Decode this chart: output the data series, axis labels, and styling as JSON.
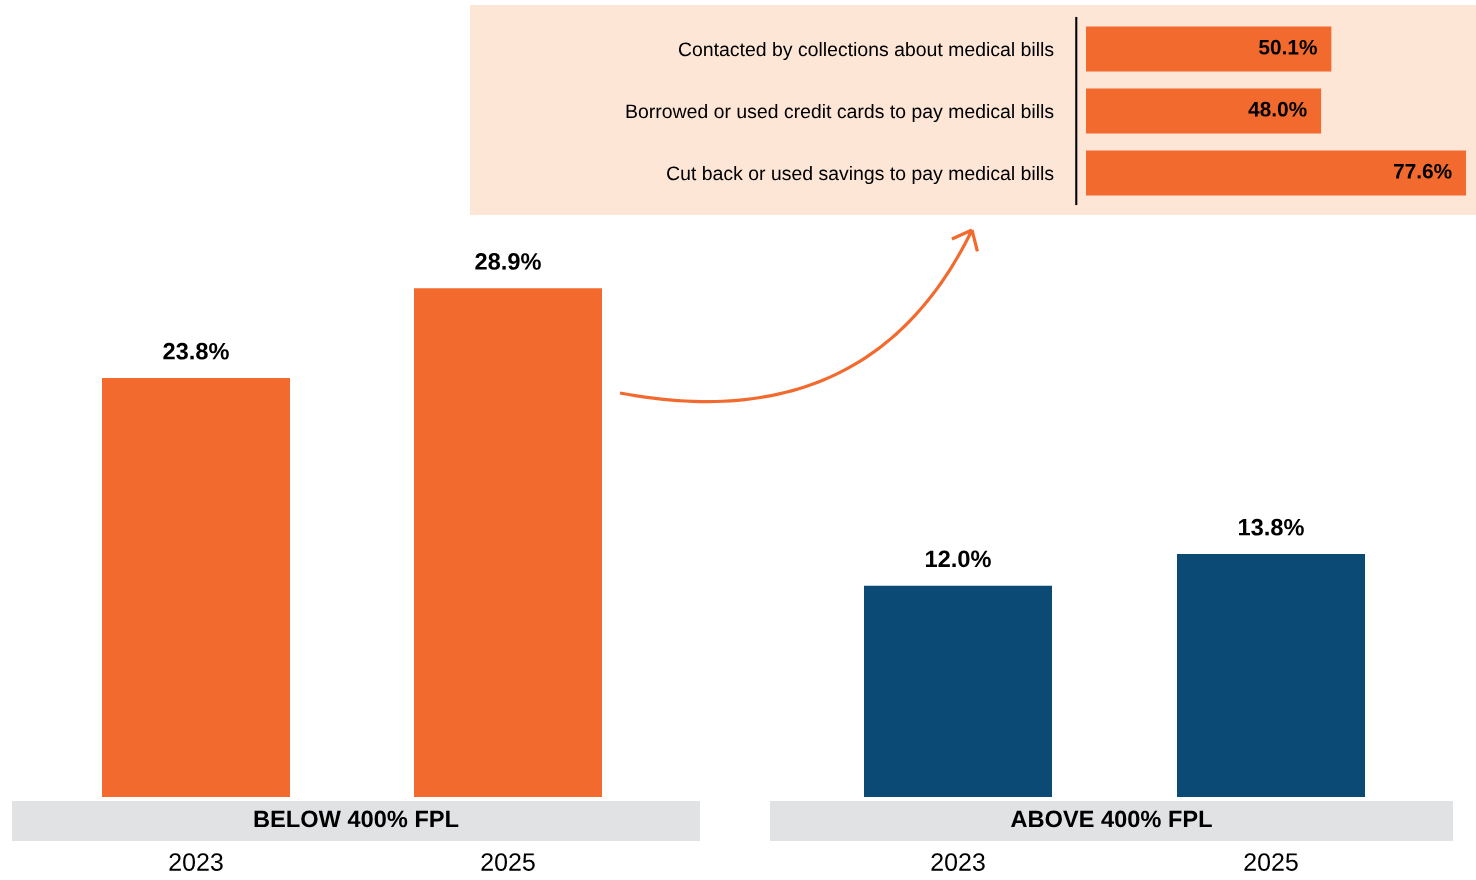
{
  "chart_data": [
    {
      "type": "bar",
      "xlabel": "BELOW 400% FPL",
      "categories": [
        "2023",
        "2025"
      ],
      "values": [
        23.8,
        28.9
      ],
      "color": "#f26a2e",
      "value_labels": [
        "23.8%",
        "28.9%"
      ],
      "tick_labels": "x"
    },
    {
      "type": "bar",
      "xlabel": "ABOVE 400% FPL",
      "categories": [
        "2023",
        "2025"
      ],
      "values": [
        12.0,
        13.8
      ],
      "color": "#0a4a75",
      "value_labels": [
        "12.0%",
        "13.8%"
      ],
      "tick_labels": "x"
    },
    {
      "type": "bar",
      "orientation": "horizontal",
      "categories": [
        "Contacted by collections about medical bills",
        "Borrowed or used credit cards to pay medical bills",
        "Cut back or used savings to pay medical bills"
      ],
      "values": [
        50.1,
        48.0,
        77.6
      ],
      "color": "#f26a2e",
      "value_labels": [
        "50.1%",
        "48.0%",
        "77.6%"
      ],
      "xlim": [
        0,
        78
      ],
      "tick_labels": "y"
    }
  ]
}
